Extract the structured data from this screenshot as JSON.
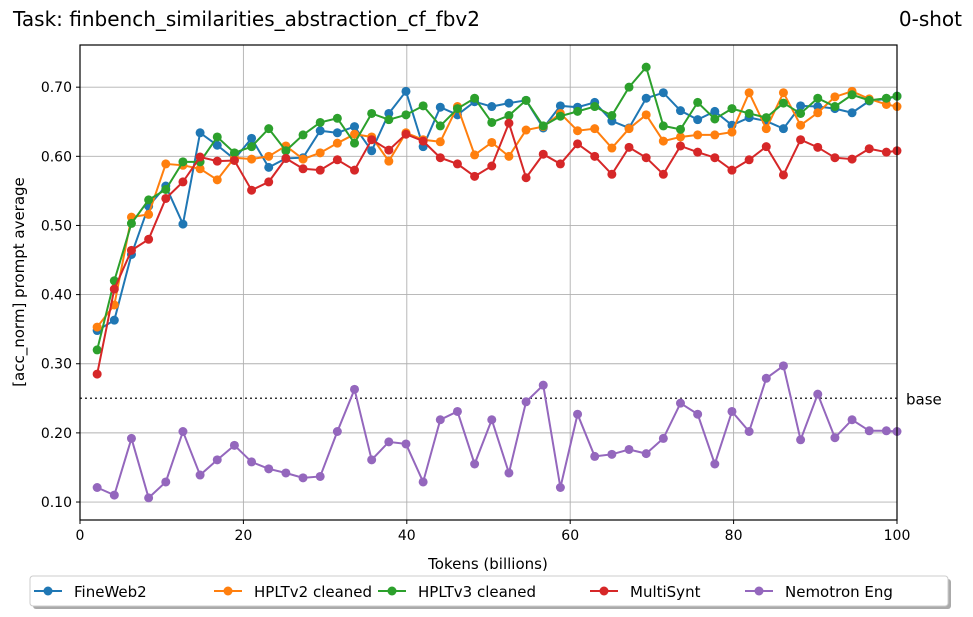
{
  "chart_data": {
    "type": "line",
    "title": "Task: finbench_similarities_abstraction_cf_fbv2",
    "title_right": "0-shot",
    "xlabel": "Tokens (billions)",
    "ylabel": "[acc_norm] prompt average",
    "xlim": [
      0,
      100
    ],
    "ylim": [
      0.074,
      0.761
    ],
    "xticks": [
      0,
      20,
      40,
      60,
      80,
      100
    ],
    "yticks": [
      0.1,
      0.2,
      0.3,
      0.4,
      0.5,
      0.6,
      0.7
    ],
    "grid": true,
    "legend_placement": "bottom",
    "baseline": {
      "value": 0.25,
      "label": "base"
    },
    "x": [
      2.1,
      4.2,
      6.3,
      8.4,
      10.5,
      12.6,
      14.7,
      16.8,
      18.9,
      21.0,
      23.1,
      25.2,
      27.3,
      29.4,
      31.5,
      33.6,
      35.7,
      37.8,
      39.9,
      42.0,
      44.1,
      46.2,
      48.3,
      50.4,
      52.5,
      54.6,
      56.7,
      58.8,
      60.9,
      63.0,
      65.1,
      67.2,
      69.3,
      71.4,
      73.5,
      75.6,
      77.7,
      79.8,
      81.9,
      84.0,
      86.1,
      88.2,
      90.3,
      92.4,
      94.5,
      96.6,
      98.7,
      100
    ],
    "series": [
      {
        "name": "FineWeb2",
        "color": "#1f77b4",
        "values": [
          0.348,
          0.363,
          0.458,
          0.528,
          0.557,
          0.502,
          0.634,
          0.616,
          0.596,
          0.626,
          0.584,
          0.597,
          0.598,
          0.637,
          0.634,
          0.643,
          0.608,
          0.662,
          0.694,
          0.614,
          0.671,
          0.66,
          0.679,
          0.672,
          0.677,
          0.681,
          0.641,
          0.673,
          0.671,
          0.678,
          0.651,
          0.641,
          0.684,
          0.692,
          0.666,
          0.653,
          0.665,
          0.645,
          0.656,
          0.651,
          0.64,
          0.673,
          0.672,
          0.669,
          0.663,
          0.68,
          0.683,
          0.687
        ]
      },
      {
        "name": "HPLTv2 cleaned",
        "color": "#ff7f0e",
        "values": [
          0.353,
          0.385,
          0.512,
          0.516,
          0.589,
          0.587,
          0.582,
          0.566,
          0.598,
          0.596,
          0.6,
          0.615,
          0.596,
          0.605,
          0.619,
          0.632,
          0.628,
          0.593,
          0.634,
          0.624,
          0.621,
          0.672,
          0.602,
          0.62,
          0.6,
          0.638,
          0.643,
          0.662,
          0.637,
          0.64,
          0.612,
          0.64,
          0.66,
          0.622,
          0.628,
          0.631,
          0.631,
          0.635,
          0.692,
          0.64,
          0.692,
          0.645,
          0.663,
          0.686,
          0.694,
          0.683,
          0.675,
          0.672
        ]
      },
      {
        "name": "HPLTv3 cleaned",
        "color": "#2ca02c",
        "values": [
          0.32,
          0.42,
          0.503,
          0.537,
          0.552,
          0.592,
          0.592,
          0.628,
          0.605,
          0.614,
          0.64,
          0.608,
          0.631,
          0.649,
          0.655,
          0.619,
          0.662,
          0.653,
          0.66,
          0.673,
          0.644,
          0.669,
          0.684,
          0.649,
          0.659,
          0.681,
          0.644,
          0.658,
          0.665,
          0.672,
          0.659,
          0.7,
          0.729,
          0.644,
          0.639,
          0.678,
          0.654,
          0.669,
          0.662,
          0.656,
          0.677,
          0.662,
          0.684,
          0.672,
          0.689,
          0.681,
          0.684,
          0.687
        ]
      },
      {
        "name": "MultiSynt",
        "color": "#d62728",
        "values": [
          0.285,
          0.408,
          0.464,
          0.48,
          0.539,
          0.563,
          0.599,
          0.593,
          0.594,
          0.551,
          0.563,
          0.597,
          0.582,
          0.58,
          0.595,
          0.58,
          0.624,
          0.609,
          0.632,
          0.622,
          0.598,
          0.589,
          0.571,
          0.586,
          0.648,
          0.569,
          0.603,
          0.589,
          0.618,
          0.6,
          0.574,
          0.613,
          0.598,
          0.574,
          0.615,
          0.606,
          0.598,
          0.58,
          0.595,
          0.614,
          0.573,
          0.624,
          0.613,
          0.598,
          0.596,
          0.611,
          0.606,
          0.608
        ]
      },
      {
        "name": "Nemotron Eng",
        "color": "#9467bd",
        "values": [
          0.121,
          0.11,
          0.192,
          0.106,
          0.129,
          0.202,
          0.139,
          0.161,
          0.182,
          0.158,
          0.148,
          0.142,
          0.135,
          0.137,
          0.202,
          0.263,
          0.161,
          0.187,
          0.184,
          0.129,
          0.219,
          0.231,
          0.155,
          0.219,
          0.142,
          0.245,
          0.269,
          0.121,
          0.227,
          0.166,
          0.169,
          0.176,
          0.17,
          0.192,
          0.243,
          0.227,
          0.155,
          0.231,
          0.202,
          0.279,
          0.297,
          0.19,
          0.256,
          0.193,
          0.219,
          0.203,
          0.203,
          0.202
        ]
      }
    ]
  }
}
